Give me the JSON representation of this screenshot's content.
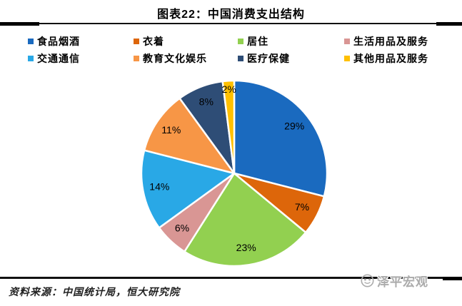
{
  "title": "图表22：中国消费支出结构",
  "source_note": "资料来源：中国统计局，恒大研究院",
  "watermark": {
    "label": "泽平宏观",
    "color": "#ABABAB"
  },
  "chart_data": {
    "type": "pie",
    "title": "图表22：中国消费支出结构",
    "start_angle_deg": 0,
    "direction": "clockwise",
    "slice_border_color": "#FFFFFF",
    "legend_position": "top",
    "legend_columns": 4,
    "slices": [
      {
        "label": "食品烟酒",
        "value_pct": 29,
        "data_label": "29%",
        "color": "#1A6ABF"
      },
      {
        "label": "衣着",
        "value_pct": 7,
        "data_label": "7%",
        "color": "#DD660A"
      },
      {
        "label": "居住",
        "value_pct": 23,
        "data_label": "23%",
        "color": "#92D050"
      },
      {
        "label": "生活用品及服务",
        "value_pct": 6,
        "data_label": "6%",
        "color": "#D99694"
      },
      {
        "label": "交通通信",
        "value_pct": 14,
        "data_label": "14%",
        "color": "#29A8E6"
      },
      {
        "label": "教育文化娱乐",
        "value_pct": 11,
        "data_label": "11%",
        "color": "#F79646"
      },
      {
        "label": "医疗保健",
        "value_pct": 8,
        "data_label": "8%",
        "color": "#2E4D76"
      },
      {
        "label": "其他用品及服务",
        "value_pct": 2,
        "data_label": "2%",
        "color": "#FFC000"
      }
    ]
  }
}
